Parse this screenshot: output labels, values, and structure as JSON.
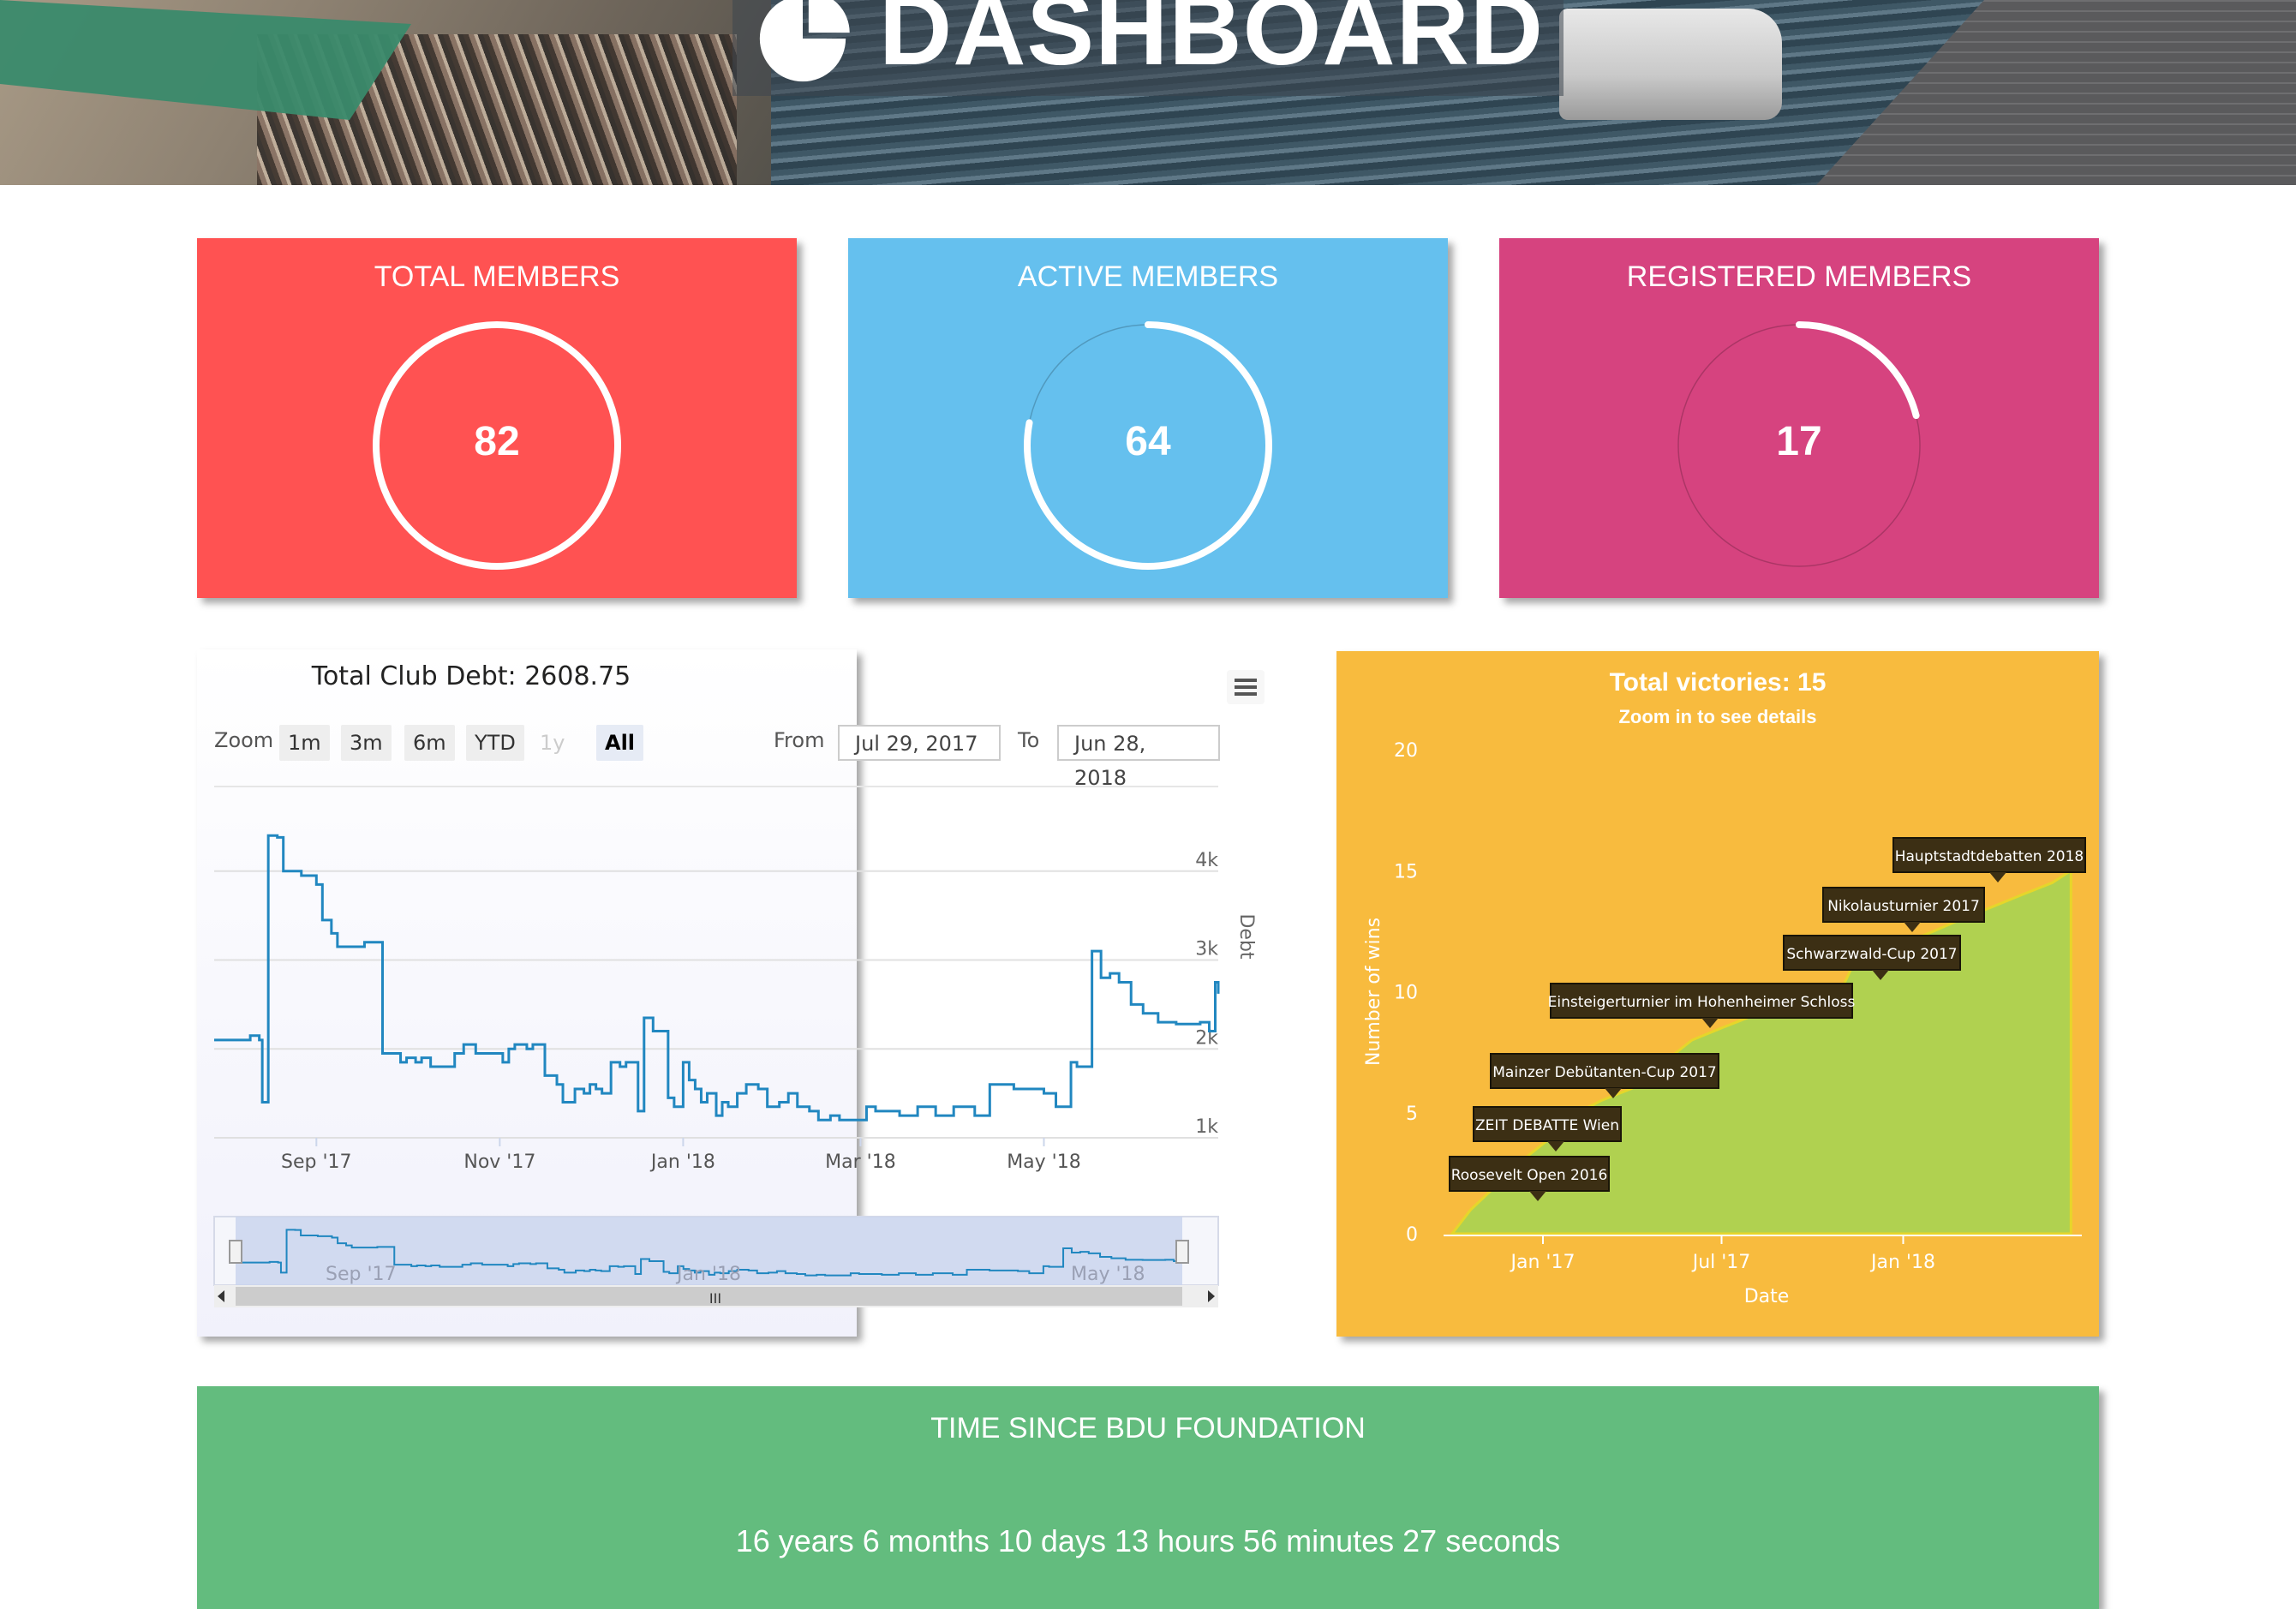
{
  "header": {
    "title": "DASHBOARD",
    "logo_icon": "pie-chart-icon"
  },
  "cards": [
    {
      "title": "TOTAL MEMBERS",
      "value": "82",
      "progress": 1.0,
      "color": "#ff5252"
    },
    {
      "title": "ACTIVE MEMBERS",
      "value": "64",
      "progress": 0.78,
      "color": "#65c0ee"
    },
    {
      "title": "REGISTERED MEMBERS",
      "value": "17",
      "progress": 0.21,
      "color": "#d6437f"
    }
  ],
  "debt_chart": {
    "title": "Total Club Debt: 2608.75",
    "menu_icon": "hamburger-icon",
    "zoom_label": "Zoom",
    "zoom_buttons": [
      "1m",
      "3m",
      "6m",
      "YTD",
      "1y",
      "All"
    ],
    "active_zoom": "All",
    "disabled_zoom": "1y",
    "from_label": "From",
    "from_value": "Jul 29, 2017",
    "to_label": "To",
    "to_value": "Jun 28, 2018",
    "navigator_labels": [
      "Sep '17",
      "Jan '18",
      "May '18"
    ],
    "scroll_left_icon": "arrow-left-icon",
    "scroll_right_icon": "arrow-right-icon",
    "scroll_grip_label": "III",
    "colors": {
      "line": "#2187c0",
      "navigator_fill": "#c8d3ee"
    }
  },
  "victories_chart": {
    "title": "Total victories: 15",
    "subtitle": "Zoom in to see details",
    "colors": {
      "series": "#b0d150",
      "background": "#f8bb3e",
      "flag": "#3c2f14"
    }
  },
  "foundation": {
    "title": "TIME SINCE BDU FOUNDATION",
    "value": "16 years 6 months 10 days 13 hours 56 minutes 27 seconds"
  },
  "chart_data": [
    {
      "type": "line",
      "title": "Total Club Debt: 2608.75",
      "ylabel": "Debt",
      "xlabel": "",
      "x_ticks": [
        "Sep '17",
        "Nov '17",
        "Jan '18",
        "Mar '18",
        "May '18"
      ],
      "y_ticks": [
        "1k",
        "2k",
        "3k",
        "4k"
      ],
      "xlim": [
        "2017-07-29",
        "2018-06-28"
      ],
      "ylim": [
        1000,
        5000
      ],
      "grid": true,
      "series": [
        {
          "x": [
            "2017-07-29",
            "2017-08-05",
            "2017-08-10",
            "2017-08-13",
            "2017-08-14",
            "2017-08-16",
            "2017-08-19",
            "2017-08-21",
            "2017-08-27",
            "2017-09-01",
            "2017-09-03",
            "2017-09-06",
            "2017-09-08",
            "2017-09-12",
            "2017-09-17",
            "2017-09-20",
            "2017-09-23",
            "2017-09-29",
            "2017-10-01",
            "2017-10-02",
            "2017-10-04",
            "2017-10-06",
            "2017-10-09",
            "2017-10-14",
            "2017-10-17",
            "2017-10-20",
            "2017-10-24",
            "2017-11-02",
            "2017-11-04",
            "2017-11-06",
            "2017-11-10",
            "2017-11-12",
            "2017-11-16",
            "2017-11-20",
            "2017-11-22",
            "2017-11-26",
            "2017-11-29",
            "2017-12-01",
            "2017-12-03",
            "2017-12-05",
            "2017-12-08",
            "2017-12-11",
            "2017-12-13",
            "2017-12-17",
            "2017-12-19",
            "2017-12-22",
            "2017-12-27",
            "2017-12-29",
            "2018-01-01",
            "2018-01-03",
            "2018-01-05",
            "2018-01-07",
            "2018-01-09",
            "2018-01-12",
            "2018-01-14",
            "2018-01-16",
            "2018-01-19",
            "2018-01-22",
            "2018-01-26",
            "2018-01-29",
            "2018-02-02",
            "2018-02-05",
            "2018-02-08",
            "2018-02-12",
            "2018-02-15",
            "2018-02-19",
            "2018-02-22",
            "2018-02-27",
            "2018-03-03",
            "2018-03-06",
            "2018-03-10",
            "2018-03-14",
            "2018-03-20",
            "2018-03-26",
            "2018-04-01",
            "2018-04-08",
            "2018-04-13",
            "2018-04-17",
            "2018-04-21",
            "2018-04-24",
            "2018-04-27",
            "2018-05-01",
            "2018-05-05",
            "2018-05-09",
            "2018-05-10",
            "2018-05-12",
            "2018-05-14",
            "2018-05-17",
            "2018-05-20",
            "2018-05-23",
            "2018-05-26",
            "2018-05-30",
            "2018-06-03",
            "2018-06-08",
            "2018-06-14",
            "2018-06-22",
            "2018-06-25",
            "2018-06-27",
            "2018-06-28"
          ],
          "y": [
            2100,
            2100,
            2150,
            2100,
            1400,
            4400,
            4380,
            4000,
            3950,
            3850,
            3450,
            3300,
            3150,
            3150,
            3200,
            3200,
            1950,
            1850,
            1900,
            1900,
            1850,
            1900,
            1800,
            1800,
            1950,
            2050,
            1950,
            1850,
            2000,
            2050,
            2000,
            2050,
            1700,
            1600,
            1400,
            1550,
            1500,
            1600,
            1550,
            1500,
            1850,
            1800,
            1850,
            1300,
            2350,
            2200,
            1450,
            1350,
            1850,
            1650,
            1550,
            1400,
            1500,
            1250,
            1400,
            1350,
            1500,
            1600,
            1550,
            1350,
            1400,
            1500,
            1350,
            1300,
            1200,
            1250,
            1200,
            1200,
            1350,
            1300,
            1300,
            1250,
            1350,
            1250,
            1350,
            1250,
            1600,
            1600,
            1550,
            1550,
            1550,
            1500,
            1350,
            1350,
            1850,
            1800,
            1800,
            3100,
            2800,
            2850,
            2750,
            2500,
            2400,
            2300,
            2280,
            2300,
            2200,
            2750,
            2620
          ],
          "name": ""
        }
      ]
    },
    {
      "type": "area",
      "title": "Total victories: 15",
      "subtitle": "Zoom in to see details",
      "xlabel": "Date",
      "ylabel": "Number of wins",
      "x_ticks": [
        "Jan '17",
        "Jul '17",
        "Jan '18"
      ],
      "y_ticks": [
        "0",
        "5",
        "10",
        "15",
        "20"
      ],
      "xlim": [
        "2016-10-01",
        "2018-07-01"
      ],
      "ylim": [
        0,
        20
      ],
      "grid": false,
      "series": [
        {
          "x": [
            "2016-10-01",
            "2016-10-20",
            "2016-11-15",
            "2016-12-10",
            "2017-01-10",
            "2017-02-05",
            "2017-03-01",
            "2017-04-01",
            "2017-05-01",
            "2017-06-01",
            "2017-07-01",
            "2017-08-01",
            "2017-09-01",
            "2017-10-01",
            "2017-10-20",
            "2017-11-10",
            "2017-12-01",
            "2018-01-01",
            "2018-02-01",
            "2018-03-01",
            "2018-04-01",
            "2018-05-01",
            "2018-06-01",
            "2018-06-20"
          ],
          "y": [
            0,
            1,
            2,
            3,
            4,
            5,
            5.5,
            6,
            7,
            8,
            8.5,
            9,
            9,
            9,
            9.2,
            11,
            11.5,
            12,
            12.5,
            13,
            13.5,
            14,
            14.5,
            15
          ],
          "name": ""
        }
      ],
      "annotations": [
        {
          "label": "Roosevelt Open 2016",
          "x": "2016-12-01",
          "y": 2
        },
        {
          "label": "ZEIT DEBATTE Wien",
          "x": "2016-12-20",
          "y": 4
        },
        {
          "label": "Mainzer Debütanten-Cup 2017",
          "x": "2017-01-15",
          "y": 6
        },
        {
          "label": "Einsteigerturnier im Hohenheimer Schloss",
          "x": "2017-05-15",
          "y": 9
        },
        {
          "label": "Schwarzwald-Cup 2017",
          "x": "2017-11-10",
          "y": 11
        },
        {
          "label": "Nikolausturnier 2017",
          "x": "2017-12-20",
          "y": 13
        },
        {
          "label": "Hauptstadtdebatten 2018",
          "x": "2018-06-10",
          "y": 15
        }
      ]
    }
  ]
}
